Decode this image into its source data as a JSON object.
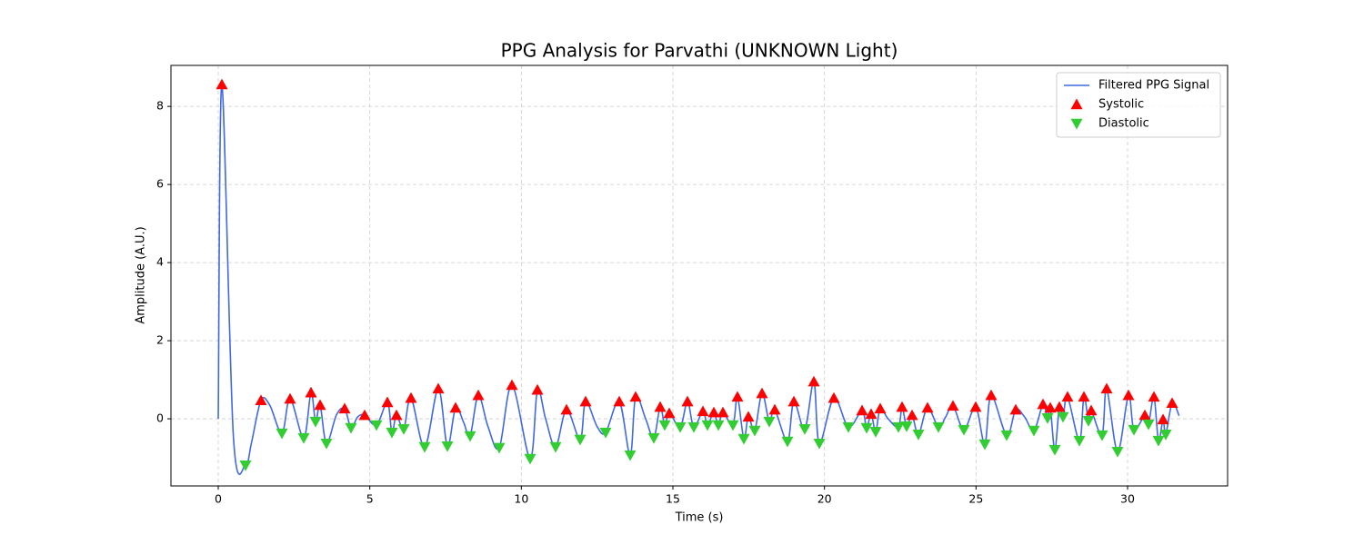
{
  "chart_data": {
    "type": "line",
    "title": "PPG Analysis for Parvathi (UNKNOWN Light)",
    "x_label": "Time (s)",
    "y_label": "Amplitude (A.U.)",
    "xlim": [
      -1.56,
      33.3
    ],
    "ylim": [
      -1.72,
      9.05
    ],
    "xticks": [
      0,
      5,
      10,
      15,
      20,
      25,
      30
    ],
    "yticks": [
      0,
      2,
      4,
      6,
      8
    ],
    "grid": true,
    "legend": "upper-right",
    "series": [
      {
        "name": "Filtered PPG Signal",
        "type": "line",
        "color": "#4169e1",
        "x": [
          0,
          0.12,
          0.5,
          0.9,
          1.1,
          1.41,
          1.7,
          2.1,
          2.37,
          2.82,
          3.06,
          3.21,
          3.36,
          3.57,
          3.9,
          4.17,
          4.38,
          4.6,
          4.83,
          5.22,
          5.58,
          5.73,
          5.88,
          6.12,
          6.36,
          6.81,
          7.26,
          7.56,
          7.83,
          8.1,
          8.31,
          8.58,
          8.9,
          9.27,
          9.69,
          10.29,
          10.53,
          10.8,
          11.13,
          11.49,
          11.94,
          12.12,
          12.5,
          12.78,
          13.23,
          13.59,
          13.77,
          14.1,
          14.37,
          14.58,
          14.73,
          14.88,
          15.24,
          15.48,
          15.69,
          15.99,
          16.14,
          16.35,
          16.5,
          16.65,
          16.98,
          17.13,
          17.34,
          17.49,
          17.7,
          17.94,
          18.18,
          18.36,
          18.78,
          18.99,
          19.35,
          19.65,
          19.83,
          20.31,
          20.79,
          21.24,
          21.39,
          21.54,
          21.69,
          21.84,
          22.1,
          22.44,
          22.56,
          22.71,
          22.89,
          23.1,
          23.4,
          23.76,
          24.0,
          24.24,
          24.6,
          24.99,
          25.29,
          25.5,
          26.01,
          26.31,
          26.6,
          26.91,
          27.21,
          27.36,
          27.45,
          27.6,
          27.75,
          27.87,
          28.02,
          28.41,
          28.56,
          28.71,
          28.8,
          29.16,
          29.31,
          29.67,
          30.03,
          30.21,
          30.57,
          30.69,
          30.87,
          31.02,
          31.17,
          31.26,
          31.47,
          31.7
        ],
        "y": [
          0,
          8.56,
          -0.45,
          -1.19,
          -0.6,
          0.47,
          0.35,
          -0.37,
          0.51,
          -0.49,
          0.67,
          -0.07,
          0.35,
          -0.63,
          0.1,
          0.26,
          -0.23,
          0.05,
          0.09,
          -0.16,
          0.42,
          -0.35,
          0.09,
          -0.26,
          0.53,
          -0.72,
          0.77,
          -0.7,
          0.28,
          -0.1,
          -0.44,
          0.6,
          -0.2,
          -0.74,
          0.86,
          -1.02,
          0.74,
          0.0,
          -0.72,
          0.23,
          -0.53,
          0.44,
          -0.2,
          -0.35,
          0.44,
          -0.93,
          0.56,
          0.0,
          -0.49,
          0.3,
          -0.16,
          0.14,
          -0.21,
          0.44,
          -0.21,
          0.19,
          -0.16,
          0.16,
          -0.16,
          0.16,
          -0.16,
          0.56,
          -0.51,
          0.05,
          -0.3,
          0.65,
          -0.07,
          0.23,
          -0.58,
          0.44,
          -0.26,
          0.95,
          -0.63,
          0.53,
          -0.21,
          0.21,
          -0.23,
          0.12,
          -0.33,
          0.26,
          0.0,
          -0.21,
          0.3,
          -0.19,
          0.09,
          -0.4,
          0.28,
          -0.21,
          0.05,
          0.33,
          -0.28,
          0.3,
          -0.65,
          0.6,
          -0.42,
          0.23,
          0.05,
          -0.3,
          0.37,
          0.02,
          0.28,
          -0.79,
          0.3,
          0.05,
          0.56,
          -0.56,
          0.56,
          -0.05,
          0.21,
          -0.42,
          0.77,
          -0.84,
          0.6,
          -0.28,
          0.09,
          -0.14,
          0.56,
          -0.56,
          -0.02,
          -0.4,
          0.4,
          0.08
        ]
      },
      {
        "name": "Systolic",
        "type": "scatter",
        "marker": "triangle-up",
        "color": "#ff0000",
        "x": [
          0.12,
          1.41,
          2.37,
          3.06,
          3.36,
          4.17,
          4.83,
          5.58,
          5.88,
          6.36,
          7.26,
          7.83,
          8.58,
          9.69,
          10.53,
          11.49,
          12.12,
          13.23,
          13.77,
          14.58,
          14.88,
          15.48,
          15.99,
          16.35,
          16.65,
          17.13,
          17.49,
          17.94,
          18.36,
          18.99,
          19.65,
          20.31,
          21.24,
          21.54,
          21.84,
          22.56,
          22.89,
          23.4,
          24.24,
          24.99,
          25.5,
          26.31,
          27.21,
          27.45,
          27.75,
          28.02,
          28.56,
          28.8,
          29.31,
          30.03,
          30.57,
          30.87,
          31.17,
          31.47
        ],
        "y": [
          8.56,
          0.47,
          0.51,
          0.67,
          0.35,
          0.26,
          0.09,
          0.42,
          0.09,
          0.53,
          0.77,
          0.28,
          0.6,
          0.86,
          0.74,
          0.23,
          0.44,
          0.44,
          0.56,
          0.3,
          0.14,
          0.44,
          0.19,
          0.16,
          0.16,
          0.56,
          0.05,
          0.65,
          0.23,
          0.44,
          0.95,
          0.53,
          0.21,
          0.12,
          0.26,
          0.3,
          0.09,
          0.28,
          0.33,
          0.3,
          0.6,
          0.23,
          0.37,
          0.28,
          0.3,
          0.56,
          0.56,
          0.21,
          0.77,
          0.6,
          0.09,
          0.56,
          -0.02,
          0.4
        ]
      },
      {
        "name": "Diastolic",
        "type": "scatter",
        "marker": "triangle-down",
        "color": "#32cd32",
        "x": [
          0.9,
          2.1,
          2.82,
          3.21,
          3.57,
          4.38,
          5.22,
          5.73,
          6.12,
          6.81,
          7.56,
          8.31,
          9.27,
          10.29,
          11.13,
          11.94,
          12.78,
          13.59,
          14.37,
          14.73,
          15.24,
          15.69,
          16.14,
          16.5,
          16.98,
          17.34,
          17.7,
          18.18,
          18.78,
          19.35,
          19.83,
          20.79,
          21.39,
          21.69,
          22.44,
          22.71,
          23.1,
          23.76,
          24.6,
          25.29,
          26.01,
          26.91,
          27.36,
          27.6,
          27.87,
          28.41,
          28.71,
          29.16,
          29.67,
          30.21,
          30.69,
          31.02,
          31.26
        ],
        "y": [
          -1.19,
          -0.37,
          -0.49,
          -0.07,
          -0.63,
          -0.23,
          -0.16,
          -0.35,
          -0.26,
          -0.72,
          -0.7,
          -0.44,
          -0.74,
          -1.02,
          -0.72,
          -0.53,
          -0.35,
          -0.93,
          -0.49,
          -0.16,
          -0.21,
          -0.21,
          -0.16,
          -0.16,
          -0.16,
          -0.51,
          -0.3,
          -0.07,
          -0.58,
          -0.26,
          -0.63,
          -0.21,
          -0.23,
          -0.33,
          -0.21,
          -0.19,
          -0.4,
          -0.21,
          -0.28,
          -0.65,
          -0.42,
          -0.3,
          0.02,
          -0.79,
          0.05,
          -0.56,
          -0.05,
          -0.42,
          -0.84,
          -0.28,
          -0.14,
          -0.56,
          -0.4
        ]
      }
    ]
  }
}
